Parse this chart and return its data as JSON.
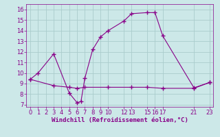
{
  "xlabel": "Windchill (Refroidissement éolien,°C)",
  "bg_color": "#cce8e8",
  "line_color": "#880088",
  "grid_color": "#aacccc",
  "xlim": [
    -0.5,
    23.5
  ],
  "ylim": [
    6.8,
    16.5
  ],
  "xticks": [
    0,
    1,
    2,
    3,
    4,
    5,
    6,
    7,
    8,
    9,
    10,
    12,
    13,
    15,
    16,
    17,
    21,
    23
  ],
  "yticks": [
    7,
    8,
    9,
    10,
    11,
    12,
    13,
    14,
    15,
    16
  ],
  "line1_x": [
    0,
    1,
    3,
    5,
    6,
    6.5,
    7,
    8,
    9,
    10,
    12,
    13,
    15,
    16,
    17,
    21,
    23
  ],
  "line1_y": [
    9.4,
    10.0,
    11.8,
    8.1,
    7.2,
    7.3,
    9.5,
    12.2,
    13.4,
    14.0,
    14.9,
    15.6,
    15.7,
    15.7,
    13.5,
    8.6,
    9.1
  ],
  "line2_x": [
    0,
    3,
    5,
    6,
    7,
    10,
    13,
    15,
    17,
    21,
    23
  ],
  "line2_y": [
    9.4,
    8.8,
    8.65,
    8.55,
    8.65,
    8.65,
    8.65,
    8.65,
    8.55,
    8.55,
    9.1
  ],
  "font_color": "#880088",
  "tick_fontsize": 6,
  "xlabel_fontsize": 6.5
}
